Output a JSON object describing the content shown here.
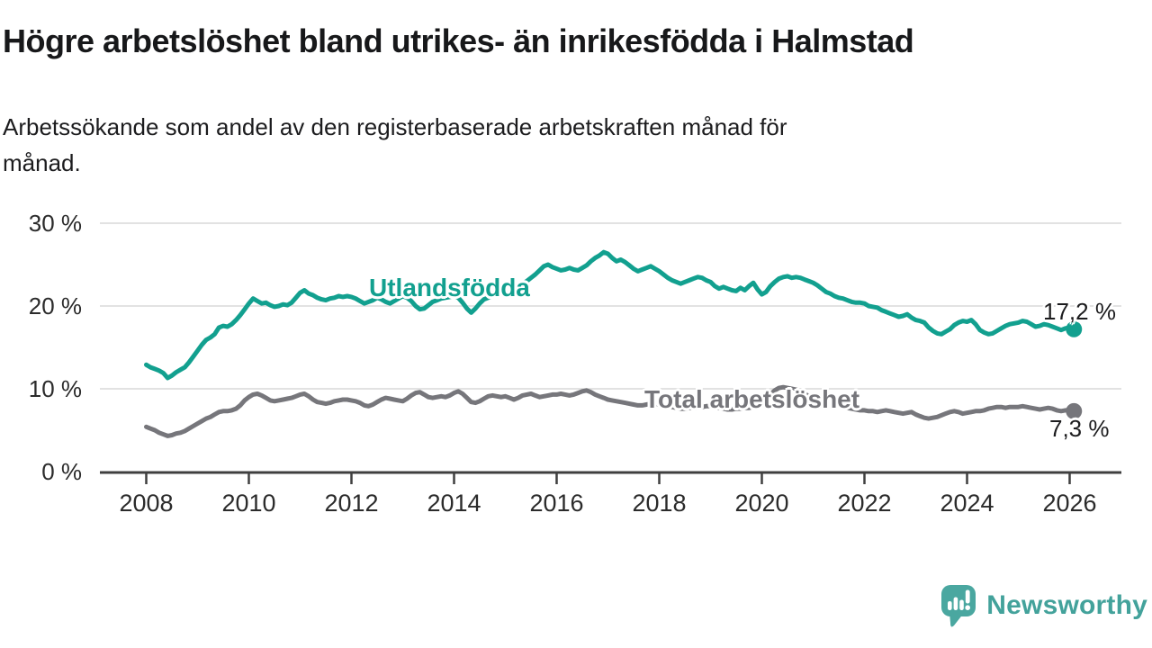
{
  "header": {
    "title": "Högre arbetslöshet bland utrikes- än inrikesfödda i Halmstad",
    "subtitle": "Arbetssökande som andel av den registerbaserade arbetskraften månad för\nmånad."
  },
  "chart_data": {
    "type": "line",
    "title": "",
    "xlabel": "",
    "ylabel": "",
    "ylim": [
      0,
      30
    ],
    "grid": true,
    "x_start_year": 2008,
    "x_step_months": 1,
    "x_axis_ticks": [
      2008,
      2010,
      2012,
      2014,
      2016,
      2018,
      2020,
      2022,
      2024,
      2026
    ],
    "y_axis_ticks": [
      {
        "value": 30,
        "label": "30 %"
      },
      {
        "value": 20,
        "label": "20 %"
      },
      {
        "value": 10,
        "label": "10 %"
      },
      {
        "value": 0,
        "label": "0 %"
      }
    ],
    "colors": {
      "grid": "#d9d9d9",
      "axis": "#3f3f3f",
      "tick_text": "#2b2b2b"
    },
    "series": [
      {
        "name": "Utlandsfödda",
        "color": "#12a08f",
        "end_label": "17,2 %",
        "values": [
          12.9,
          12.6,
          12.4,
          12.2,
          11.9,
          11.3,
          11.6,
          12.0,
          12.3,
          12.6,
          13.2,
          13.9,
          14.6,
          15.3,
          15.9,
          16.2,
          16.6,
          17.4,
          17.6,
          17.5,
          17.8,
          18.3,
          18.9,
          19.6,
          20.3,
          20.9,
          20.6,
          20.3,
          20.4,
          20.1,
          19.9,
          20.0,
          20.2,
          20.1,
          20.4,
          21.0,
          21.6,
          21.9,
          21.5,
          21.3,
          21.0,
          20.8,
          20.7,
          20.9,
          21.0,
          21.2,
          21.1,
          21.2,
          21.1,
          20.9,
          20.6,
          20.3,
          20.5,
          20.7,
          21.0,
          20.8,
          20.5,
          20.3,
          20.6,
          20.9,
          21.2,
          21.0,
          20.6,
          20.0,
          19.6,
          19.7,
          20.1,
          20.5,
          20.7,
          20.9,
          21.0,
          21.1,
          21.2,
          21.0,
          20.4,
          19.7,
          19.2,
          19.7,
          20.3,
          20.8,
          21.0,
          21.2,
          21.4,
          21.6,
          21.8,
          22.0,
          22.2,
          22.4,
          22.7,
          23.0,
          23.4,
          23.8,
          24.3,
          24.8,
          25.0,
          24.7,
          24.5,
          24.3,
          24.4,
          24.6,
          24.4,
          24.3,
          24.6,
          24.9,
          25.4,
          25.8,
          26.1,
          26.5,
          26.3,
          25.8,
          25.4,
          25.6,
          25.3,
          24.9,
          24.5,
          24.2,
          24.4,
          24.6,
          24.8,
          24.5,
          24.2,
          23.8,
          23.4,
          23.1,
          22.9,
          22.7,
          22.9,
          23.1,
          23.3,
          23.5,
          23.4,
          23.1,
          22.9,
          22.4,
          22.1,
          22.3,
          22.1,
          21.9,
          21.8,
          22.2,
          21.9,
          22.4,
          22.8,
          22.0,
          21.4,
          21.7,
          22.4,
          22.9,
          23.3,
          23.5,
          23.6,
          23.4,
          23.5,
          23.4,
          23.2,
          23.0,
          22.8,
          22.5,
          22.1,
          21.7,
          21.5,
          21.2,
          21.0,
          20.9,
          20.7,
          20.5,
          20.4,
          20.4,
          20.3,
          20.0,
          19.9,
          19.8,
          19.5,
          19.3,
          19.1,
          18.9,
          18.7,
          18.8,
          19.0,
          18.6,
          18.3,
          18.2,
          18.0,
          17.4,
          17.0,
          16.7,
          16.6,
          16.9,
          17.2,
          17.7,
          18.0,
          18.2,
          18.1,
          18.3,
          17.8,
          17.1,
          16.8,
          16.6,
          16.7,
          17.0,
          17.3,
          17.6,
          17.8,
          17.9,
          18.0,
          18.2,
          18.1,
          17.8,
          17.5,
          17.6,
          17.8,
          17.7,
          17.5,
          17.3,
          17.1,
          17.3,
          17.4,
          17.2
        ]
      },
      {
        "name": "Total arbetslöshet",
        "color": "#76767b",
        "end_label": "7,3 %",
        "values": [
          5.4,
          5.2,
          5.0,
          4.7,
          4.5,
          4.3,
          4.4,
          4.6,
          4.7,
          4.9,
          5.2,
          5.5,
          5.8,
          6.1,
          6.4,
          6.6,
          6.9,
          7.2,
          7.3,
          7.3,
          7.4,
          7.6,
          8.0,
          8.6,
          9.0,
          9.3,
          9.4,
          9.2,
          8.9,
          8.6,
          8.5,
          8.6,
          8.7,
          8.8,
          8.9,
          9.1,
          9.3,
          9.4,
          9.1,
          8.7,
          8.4,
          8.3,
          8.2,
          8.3,
          8.5,
          8.6,
          8.7,
          8.7,
          8.6,
          8.5,
          8.3,
          8.0,
          7.9,
          8.1,
          8.4,
          8.7,
          8.9,
          8.8,
          8.7,
          8.6,
          8.5,
          8.8,
          9.2,
          9.5,
          9.6,
          9.3,
          9.0,
          8.9,
          9.0,
          9.1,
          9.0,
          9.2,
          9.5,
          9.7,
          9.4,
          8.9,
          8.4,
          8.3,
          8.5,
          8.8,
          9.1,
          9.2,
          9.1,
          9.0,
          9.1,
          8.9,
          8.7,
          8.9,
          9.2,
          9.3,
          9.4,
          9.2,
          9.0,
          9.1,
          9.2,
          9.3,
          9.3,
          9.4,
          9.3,
          9.2,
          9.3,
          9.5,
          9.7,
          9.8,
          9.6,
          9.3,
          9.1,
          8.9,
          8.7,
          8.6,
          8.5,
          8.4,
          8.3,
          8.2,
          8.1,
          8.0,
          8.0,
          8.1,
          8.2,
          8.2,
          8.1,
          8.0,
          7.9,
          7.8,
          7.7,
          7.6,
          7.6,
          7.7,
          7.7,
          7.8,
          7.8,
          7.9,
          7.9,
          7.8,
          7.7,
          7.6,
          7.5,
          7.5,
          7.6,
          7.6,
          7.7,
          7.7,
          7.8,
          7.9,
          8.2,
          8.7,
          9.3,
          9.8,
          10.1,
          10.2,
          10.1,
          10.0,
          9.9,
          9.7,
          9.4,
          9.1,
          8.9,
          8.7,
          8.5,
          8.3,
          8.1,
          8.0,
          7.9,
          7.8,
          7.7,
          7.6,
          7.5,
          7.4,
          7.4,
          7.3,
          7.3,
          7.2,
          7.3,
          7.4,
          7.3,
          7.2,
          7.1,
          7.0,
          7.1,
          7.2,
          6.9,
          6.7,
          6.5,
          6.4,
          6.5,
          6.6,
          6.8,
          7.0,
          7.2,
          7.3,
          7.2,
          7.0,
          7.1,
          7.2,
          7.3,
          7.3,
          7.4,
          7.6,
          7.7,
          7.8,
          7.8,
          7.7,
          7.8,
          7.8,
          7.8,
          7.9,
          7.8,
          7.7,
          7.6,
          7.5,
          7.6,
          7.7,
          7.6,
          7.4,
          7.3,
          7.4,
          7.4,
          7.3
        ]
      }
    ]
  },
  "footer": {
    "brand": "Newsworthy",
    "logo_color": "#4aa7a0"
  }
}
